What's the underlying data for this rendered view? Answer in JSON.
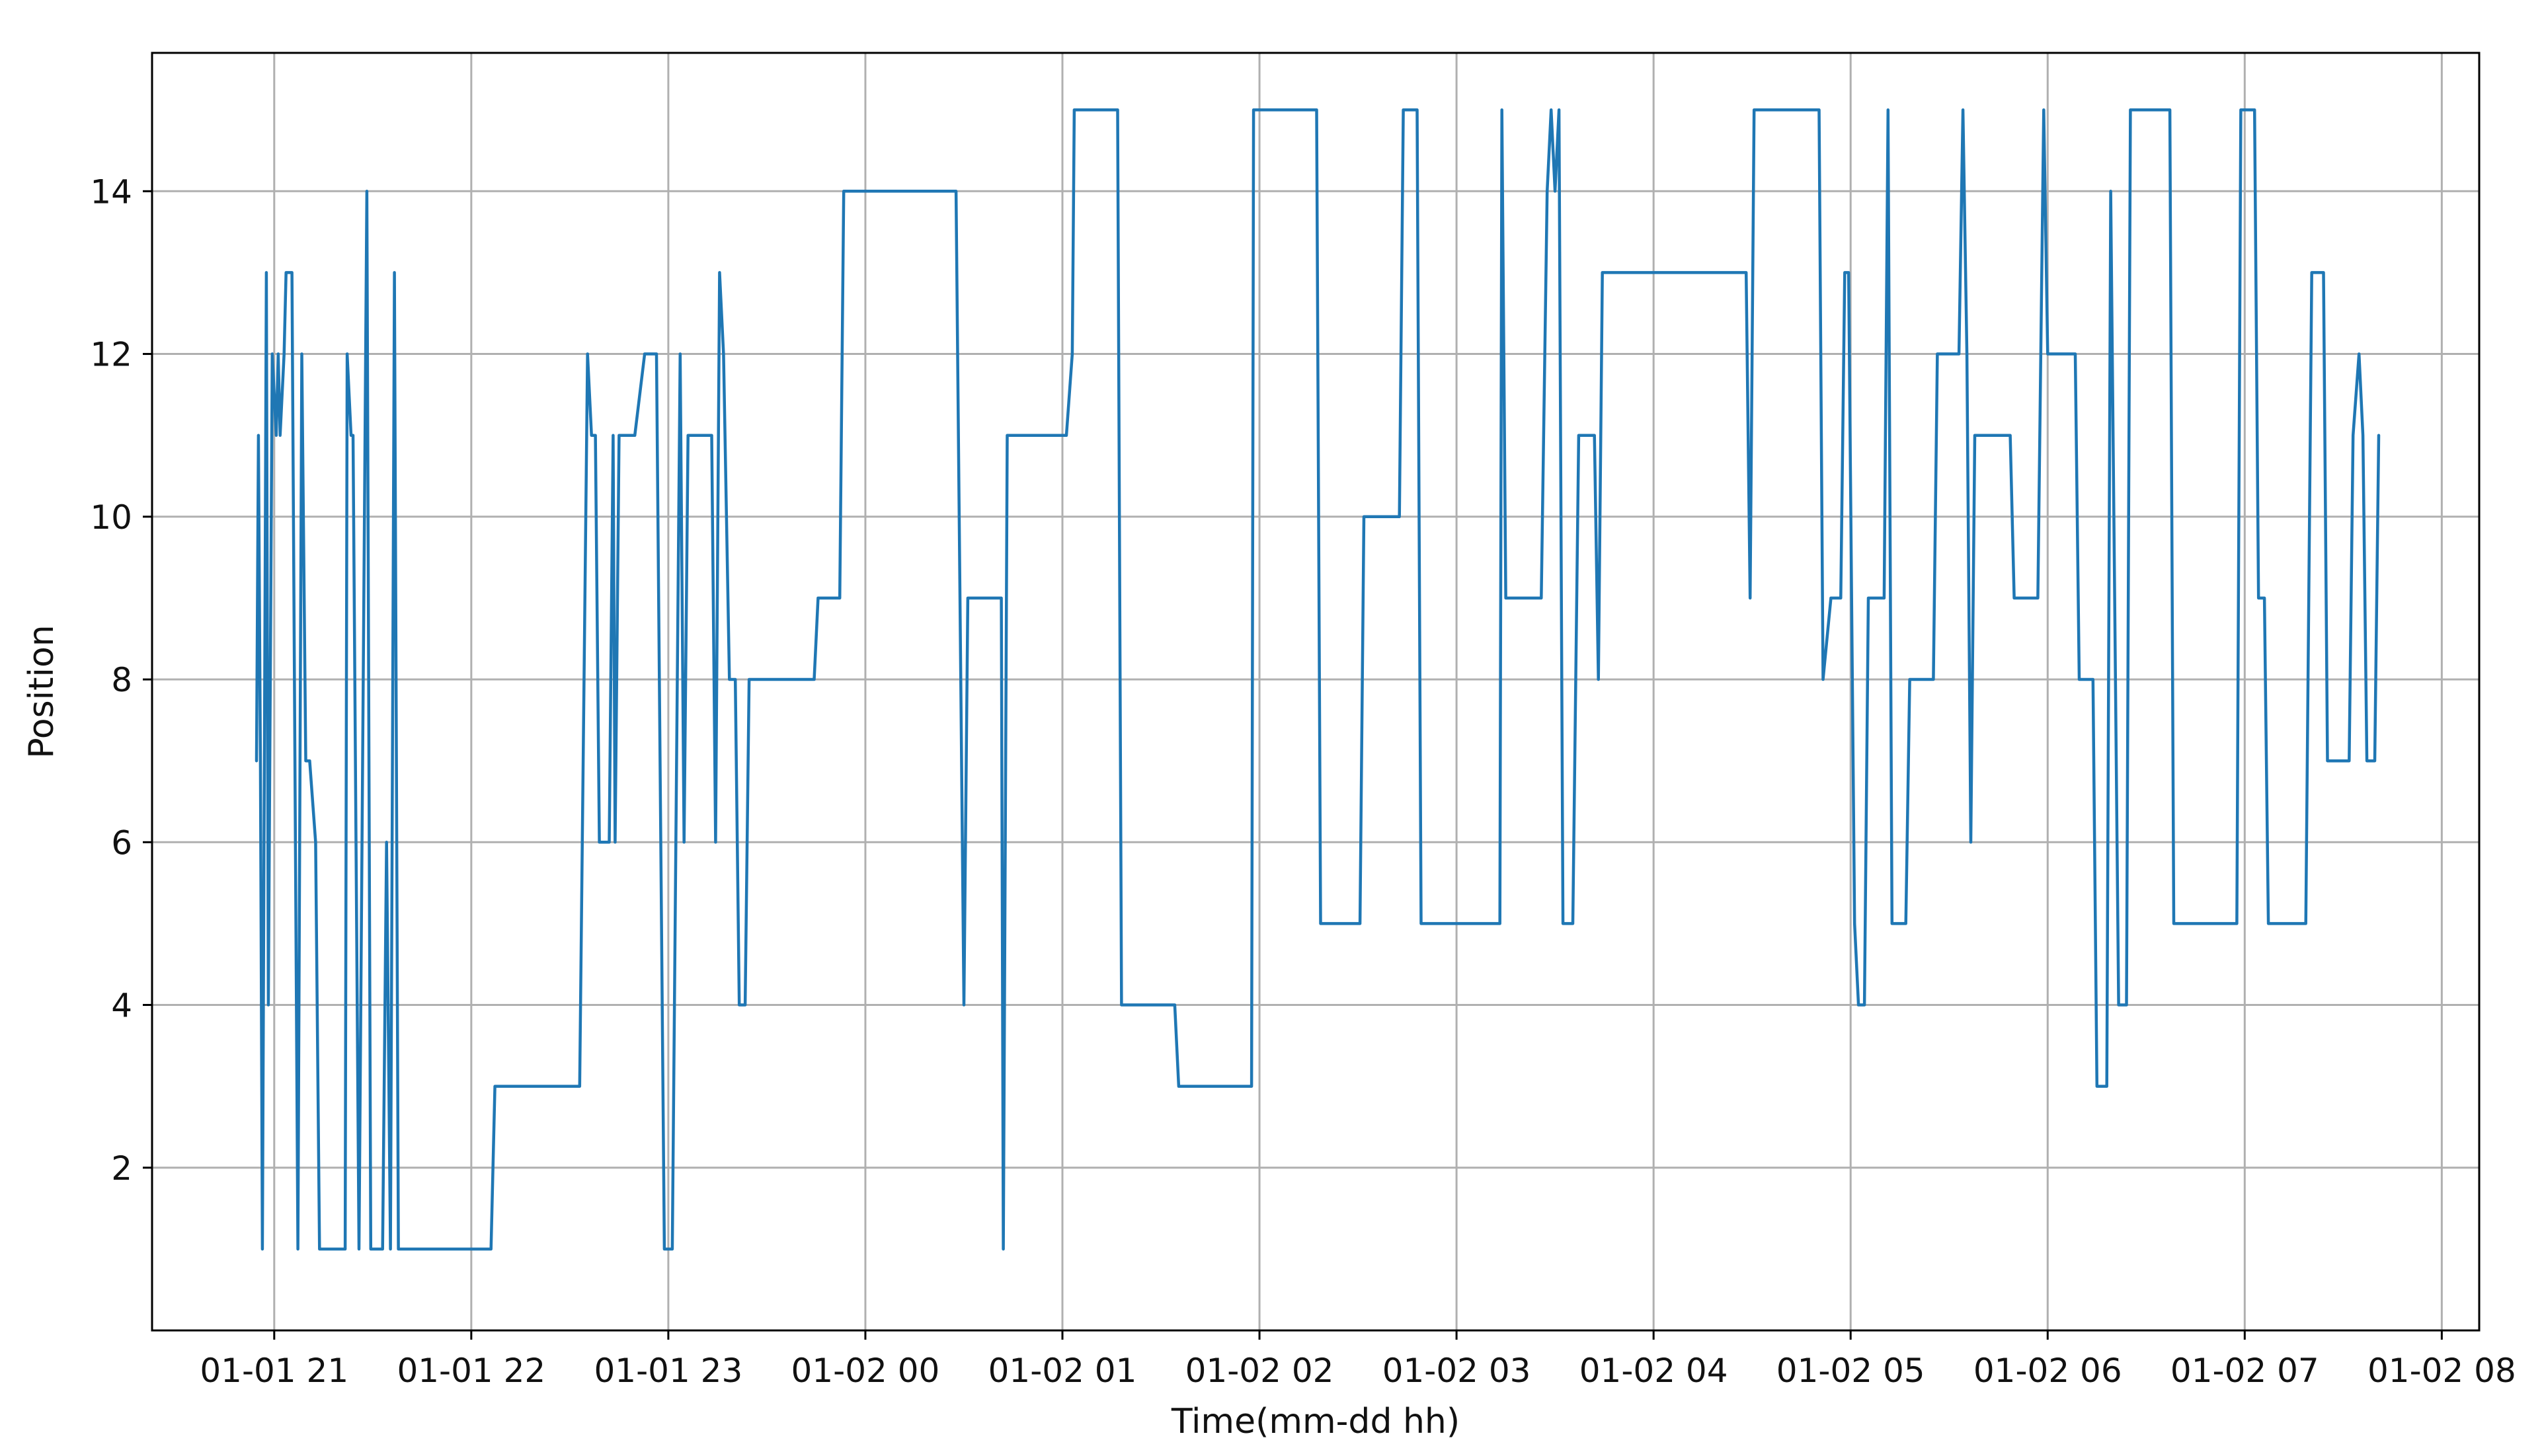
{
  "chart_data": {
    "type": "line",
    "title": "",
    "xlabel": "Time(mm-dd hh)",
    "ylabel": "Position",
    "x_unit": "hours",
    "x_range_hours": [
      20.38,
      32.19
    ],
    "ylim": [
      0.0,
      15.7
    ],
    "grid": true,
    "line_color": "#1f77b4",
    "x_ticks": [
      {
        "hour": 21,
        "label": "01-01 21"
      },
      {
        "hour": 22,
        "label": "01-01 22"
      },
      {
        "hour": 23,
        "label": "01-01 23"
      },
      {
        "hour": 24,
        "label": "01-02 00"
      },
      {
        "hour": 25,
        "label": "01-02 01"
      },
      {
        "hour": 26,
        "label": "01-02 02"
      },
      {
        "hour": 27,
        "label": "01-02 03"
      },
      {
        "hour": 28,
        "label": "01-02 04"
      },
      {
        "hour": 29,
        "label": "01-02 05"
      },
      {
        "hour": 30,
        "label": "01-02 06"
      },
      {
        "hour": 31,
        "label": "01-02 07"
      },
      {
        "hour": 32,
        "label": "01-02 08"
      }
    ],
    "y_ticks": [
      {
        "value": 2,
        "label": "2"
      },
      {
        "value": 4,
        "label": "4"
      },
      {
        "value": 6,
        "label": "6"
      },
      {
        "value": 8,
        "label": "8"
      },
      {
        "value": 10,
        "label": "10"
      },
      {
        "value": 12,
        "label": "12"
      },
      {
        "value": 14,
        "label": "14"
      }
    ],
    "series": [
      {
        "points": [
          [
            20.91,
            7
          ],
          [
            20.92,
            11
          ],
          [
            20.93,
            7
          ],
          [
            20.94,
            1
          ],
          [
            20.96,
            13
          ],
          [
            20.97,
            4
          ],
          [
            20.99,
            12
          ],
          [
            21.01,
            11
          ],
          [
            21.02,
            12
          ],
          [
            21.03,
            11
          ],
          [
            21.05,
            12
          ],
          [
            21.06,
            13
          ],
          [
            21.09,
            13
          ],
          [
            21.12,
            1
          ],
          [
            21.14,
            12
          ],
          [
            21.16,
            7
          ],
          [
            21.18,
            7
          ],
          [
            21.21,
            6
          ],
          [
            21.23,
            1
          ],
          [
            21.36,
            1
          ],
          [
            21.37,
            12
          ],
          [
            21.39,
            11
          ],
          [
            21.4,
            11
          ],
          [
            21.43,
            1
          ],
          [
            21.47,
            14
          ],
          [
            21.49,
            1
          ],
          [
            21.55,
            1
          ],
          [
            21.57,
            6
          ],
          [
            21.59,
            1
          ],
          [
            21.61,
            13
          ],
          [
            21.63,
            1
          ],
          [
            22.1,
            1
          ],
          [
            22.12,
            3
          ],
          [
            22.55,
            3
          ],
          [
            22.59,
            12
          ],
          [
            22.61,
            11
          ],
          [
            22.63,
            11
          ],
          [
            22.65,
            6
          ],
          [
            22.7,
            6
          ],
          [
            22.72,
            11
          ],
          [
            22.73,
            6
          ],
          [
            22.75,
            11
          ],
          [
            22.78,
            11
          ],
          [
            22.83,
            11
          ],
          [
            22.88,
            12
          ],
          [
            22.94,
            12
          ],
          [
            22.98,
            1
          ],
          [
            23.02,
            1
          ],
          [
            23.06,
            12
          ],
          [
            23.08,
            6
          ],
          [
            23.1,
            11
          ],
          [
            23.22,
            11
          ],
          [
            23.24,
            6
          ],
          [
            23.26,
            13
          ],
          [
            23.28,
            12
          ],
          [
            23.31,
            8
          ],
          [
            23.34,
            8
          ],
          [
            23.36,
            4
          ],
          [
            23.39,
            4
          ],
          [
            23.41,
            8
          ],
          [
            23.74,
            8
          ],
          [
            23.76,
            9
          ],
          [
            23.87,
            9
          ],
          [
            23.89,
            14
          ],
          [
            24.46,
            14
          ],
          [
            24.5,
            4
          ],
          [
            24.52,
            9
          ],
          [
            24.69,
            9
          ],
          [
            24.7,
            1
          ],
          [
            24.72,
            11
          ],
          [
            25.02,
            11
          ],
          [
            25.05,
            12
          ],
          [
            25.06,
            15
          ],
          [
            25.28,
            15
          ],
          [
            25.3,
            4
          ],
          [
            25.57,
            4
          ],
          [
            25.59,
            3
          ],
          [
            25.96,
            3
          ],
          [
            25.97,
            15
          ],
          [
            26.29,
            15
          ],
          [
            26.31,
            5
          ],
          [
            26.51,
            5
          ],
          [
            26.53,
            10
          ],
          [
            26.71,
            10
          ],
          [
            26.73,
            15
          ],
          [
            26.8,
            15
          ],
          [
            26.82,
            5
          ],
          [
            27.22,
            5
          ],
          [
            27.23,
            15
          ],
          [
            27.25,
            9
          ],
          [
            27.43,
            9
          ],
          [
            27.46,
            14
          ],
          [
            27.48,
            15
          ],
          [
            27.5,
            14
          ],
          [
            27.52,
            15
          ],
          [
            27.54,
            5
          ],
          [
            27.59,
            5
          ],
          [
            27.62,
            11
          ],
          [
            27.7,
            11
          ],
          [
            27.72,
            8
          ],
          [
            27.74,
            13
          ],
          [
            28.47,
            13
          ],
          [
            28.49,
            9
          ],
          [
            28.51,
            15
          ],
          [
            28.84,
            15
          ],
          [
            28.86,
            8
          ],
          [
            28.9,
            9
          ],
          [
            28.95,
            9
          ],
          [
            28.97,
            13
          ],
          [
            28.99,
            13
          ],
          [
            29.02,
            5
          ],
          [
            29.04,
            4
          ],
          [
            29.07,
            4
          ],
          [
            29.09,
            9
          ],
          [
            29.17,
            9
          ],
          [
            29.19,
            15
          ],
          [
            29.21,
            5
          ],
          [
            29.28,
            5
          ],
          [
            29.3,
            8
          ],
          [
            29.42,
            8
          ],
          [
            29.44,
            12
          ],
          [
            29.55,
            12
          ],
          [
            29.57,
            15
          ],
          [
            29.59,
            12
          ],
          [
            29.61,
            6
          ],
          [
            29.63,
            11
          ],
          [
            29.81,
            11
          ],
          [
            29.83,
            9
          ],
          [
            29.95,
            9
          ],
          [
            29.98,
            15
          ],
          [
            30.0,
            12
          ],
          [
            30.14,
            12
          ],
          [
            30.16,
            8
          ],
          [
            30.23,
            8
          ],
          [
            30.25,
            3
          ],
          [
            30.3,
            3
          ],
          [
            30.32,
            14
          ],
          [
            30.34,
            9
          ],
          [
            30.36,
            4
          ],
          [
            30.4,
            4
          ],
          [
            30.42,
            15
          ],
          [
            30.62,
            15
          ],
          [
            30.64,
            5
          ],
          [
            30.96,
            5
          ],
          [
            30.98,
            15
          ],
          [
            31.05,
            15
          ],
          [
            31.07,
            9
          ],
          [
            31.1,
            9
          ],
          [
            31.12,
            5
          ],
          [
            31.31,
            5
          ],
          [
            31.34,
            13
          ],
          [
            31.4,
            13
          ],
          [
            31.42,
            7
          ],
          [
            31.53,
            7
          ],
          [
            31.55,
            11
          ],
          [
            31.58,
            12
          ],
          [
            31.6,
            11
          ],
          [
            31.62,
            7
          ],
          [
            31.66,
            7
          ],
          [
            31.68,
            11
          ]
        ]
      }
    ]
  }
}
